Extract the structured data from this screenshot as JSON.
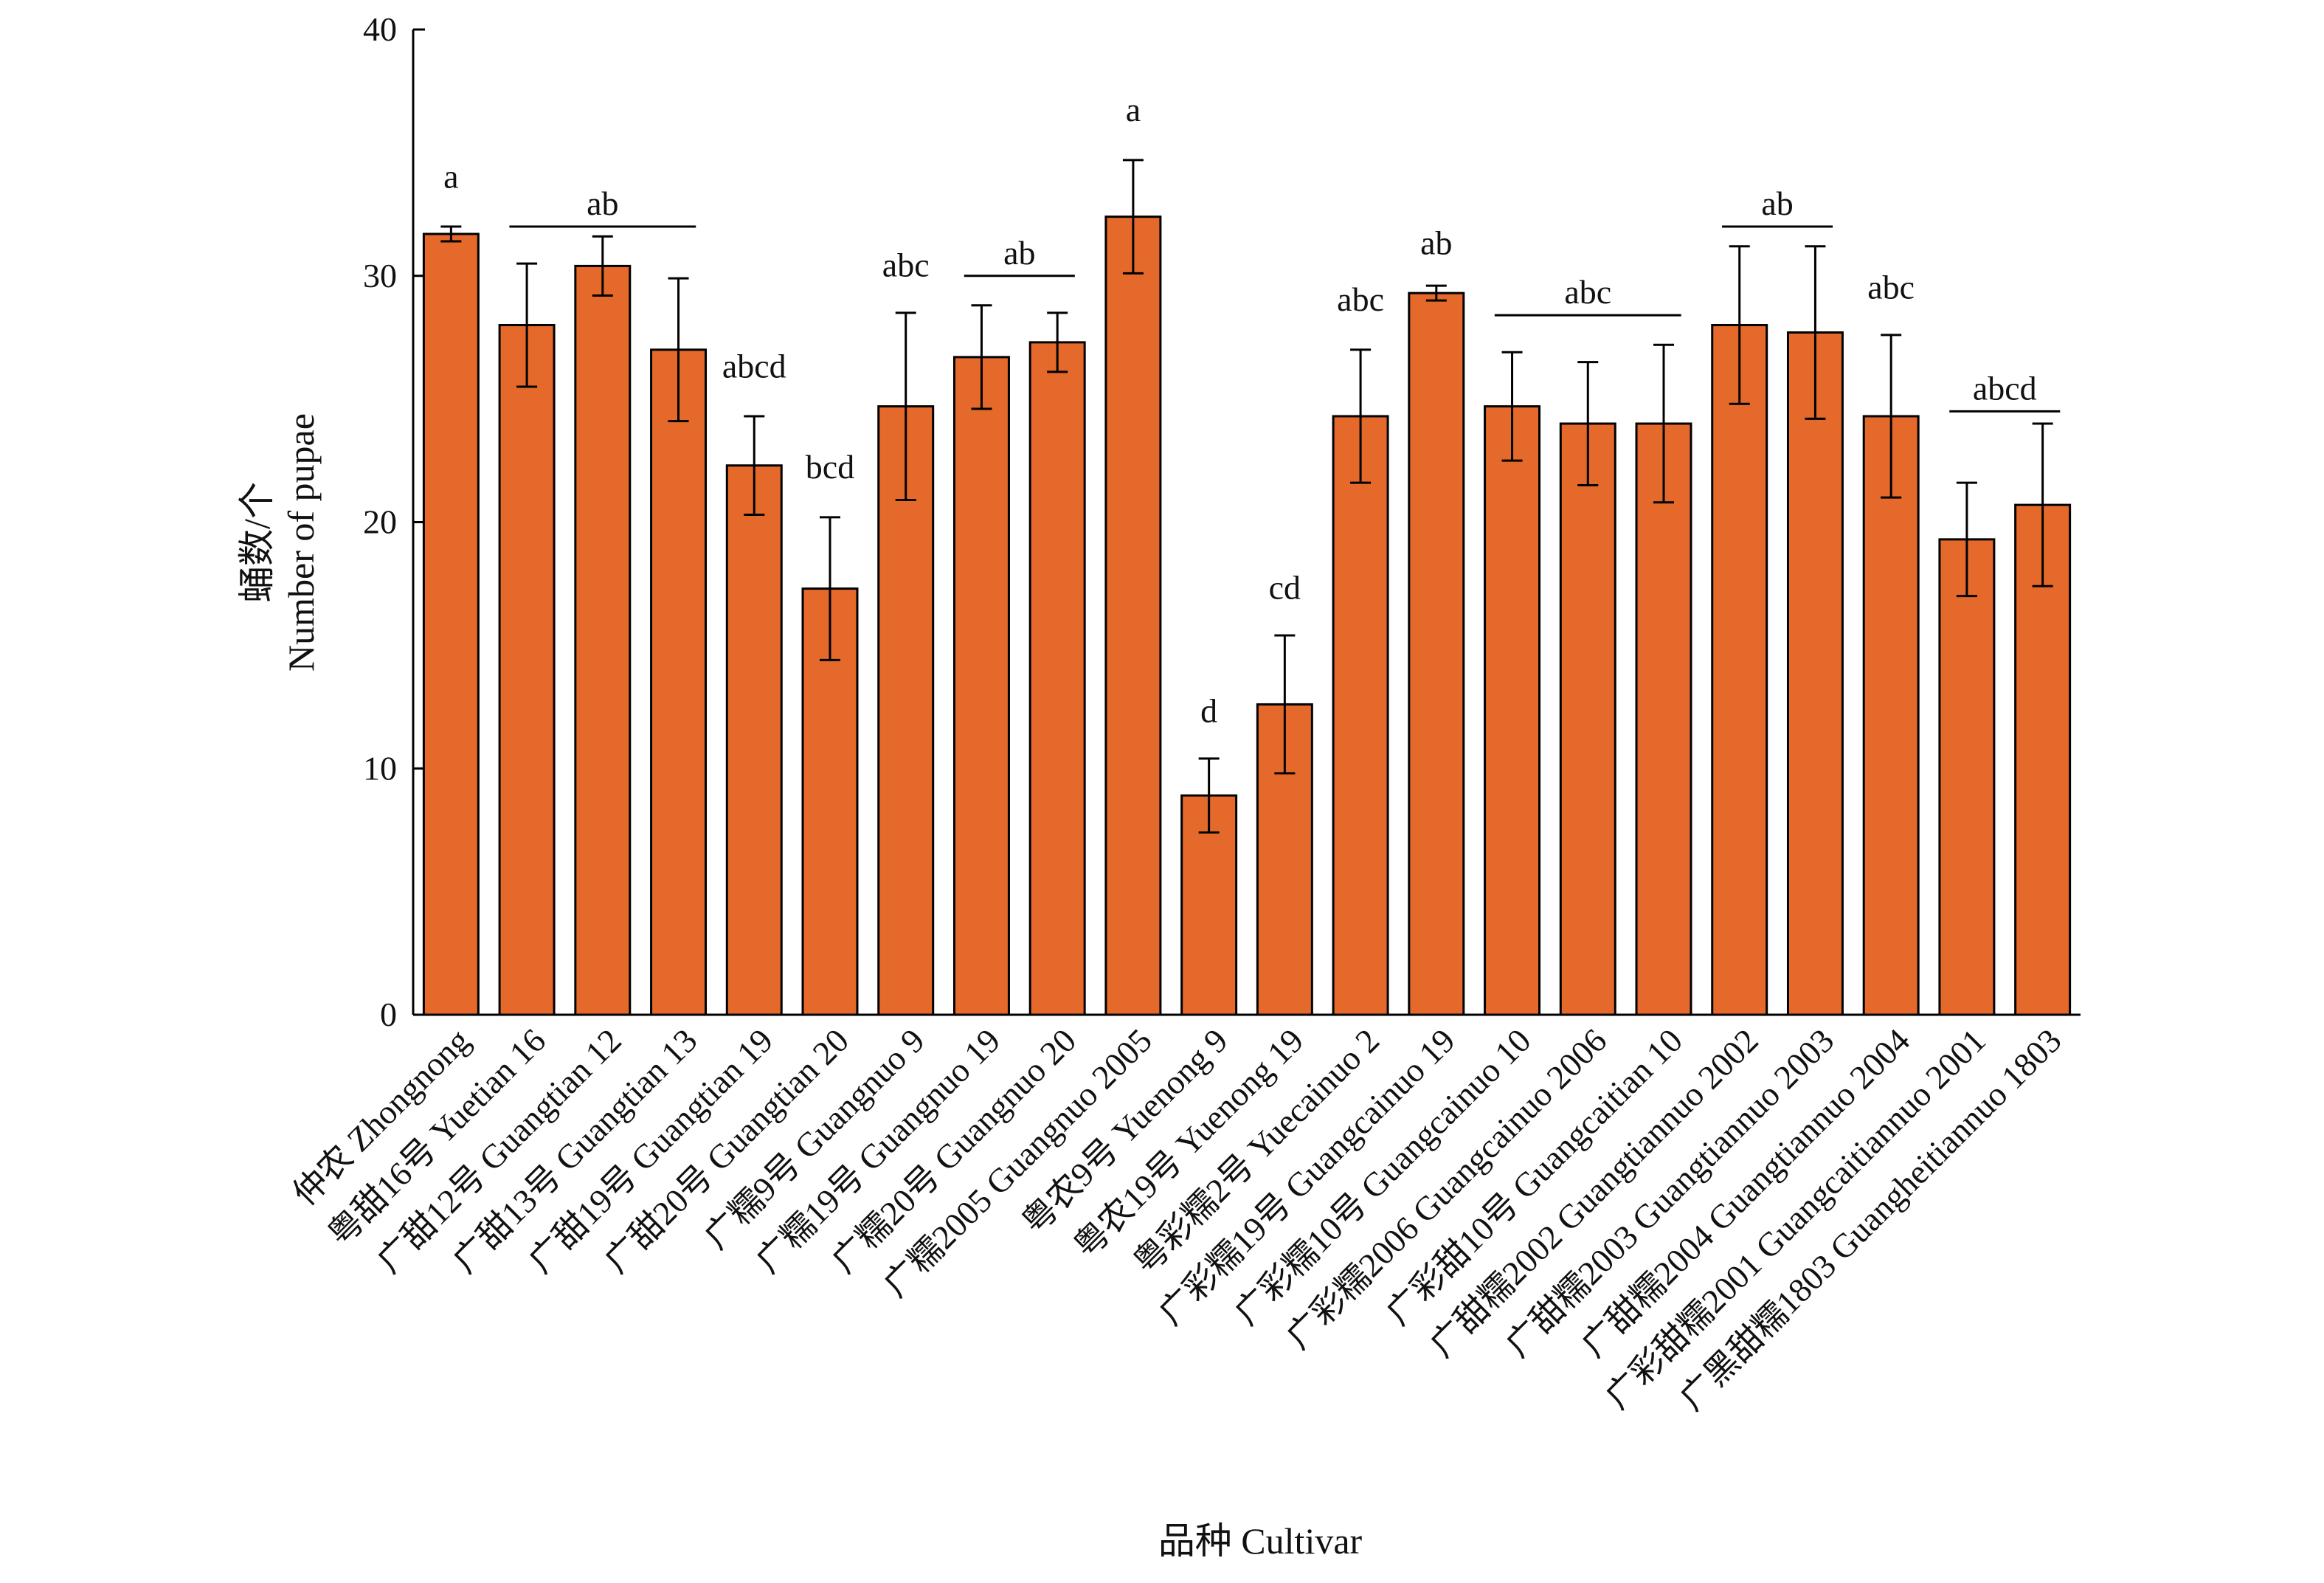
{
  "chart_data": {
    "type": "bar",
    "title": "",
    "xlabel": "品种 Cultivar",
    "ylabel_lines": [
      "蛹数/个",
      "Number of pupae"
    ],
    "ylim": [
      0,
      40
    ],
    "yticks": [
      0,
      10,
      20,
      30,
      40
    ],
    "bar_color": "#E5692B",
    "bar_edge_color": "#000000",
    "categories": [
      "仲农 Zhongnong",
      "粤甜16号 Yuetian 16",
      "广甜12号 Guangtian 12",
      "广甜13号 Guangtian 13",
      "广甜19号 Guangtian 19",
      "广甜20号 Guangtian 20",
      "广糯9号 Guangnuo 9",
      "广糯19号 Guangnuo 19",
      "广糯20号 Guangnuo 20",
      "广糯2005 Guangnuo 2005",
      "粤农9号 Yuenong 9",
      "粤农19号 Yuenong 19",
      "粤彩糯2号 Yuecainuo 2",
      "广彩糯19号 Guangcainuo 19",
      "广彩糯10号 Guangcainuo 10",
      "广彩糯2006 Guangcainuo 2006",
      "广彩甜10号 Guangcaitian 10",
      "广甜糯2002 Guangtiannuo 2002",
      "广甜糯2003 Guangtiannuo 2003",
      "广甜糯2004 Guangtiannuo 2004",
      "广彩甜糯2001 Guangcaitiannuo 2001",
      "广黑甜糯1803 Guangheitiannuo 1803"
    ],
    "values": [
      31.7,
      28.0,
      30.4,
      27.0,
      22.3,
      17.3,
      24.7,
      26.7,
      27.3,
      32.4,
      8.9,
      12.6,
      24.3,
      29.3,
      24.7,
      24.0,
      24.0,
      28.0,
      27.7,
      24.3,
      19.3,
      20.7
    ],
    "errors": [
      0.3,
      2.5,
      1.2,
      2.9,
      2.0,
      2.9,
      3.8,
      2.1,
      1.2,
      2.3,
      1.5,
      2.8,
      2.7,
      0.3,
      2.2,
      2.5,
      3.2,
      3.2,
      3.5,
      3.3,
      2.3,
      3.3
    ],
    "significance": [
      {
        "label": "a",
        "from": 0,
        "to": 0,
        "y": 33.1
      },
      {
        "label": "ab",
        "from": 1,
        "to": 3,
        "y": 32.0
      },
      {
        "label": "abcd",
        "from": 4,
        "to": 4,
        "y": 25.4
      },
      {
        "label": "bcd",
        "from": 5,
        "to": 5,
        "y": 21.3
      },
      {
        "label": "abc",
        "from": 6,
        "to": 6,
        "y": 29.5
      },
      {
        "label": "ab",
        "from": 7,
        "to": 8,
        "y": 30.0
      },
      {
        "label": "a",
        "from": 9,
        "to": 9,
        "y": 35.8
      },
      {
        "label": "d",
        "from": 10,
        "to": 10,
        "y": 11.4
      },
      {
        "label": "cd",
        "from": 11,
        "to": 11,
        "y": 16.4
      },
      {
        "label": "abc",
        "from": 12,
        "to": 12,
        "y": 28.1
      },
      {
        "label": "ab",
        "from": 13,
        "to": 13,
        "y": 30.4
      },
      {
        "label": "abc",
        "from": 14,
        "to": 16,
        "y": 28.4
      },
      {
        "label": "ab",
        "from": 17,
        "to": 18,
        "y": 32.0
      },
      {
        "label": "abc",
        "from": 19,
        "to": 19,
        "y": 28.6
      },
      {
        "label": "abcd",
        "from": 20,
        "to": 21,
        "y": 24.5
      }
    ]
  }
}
